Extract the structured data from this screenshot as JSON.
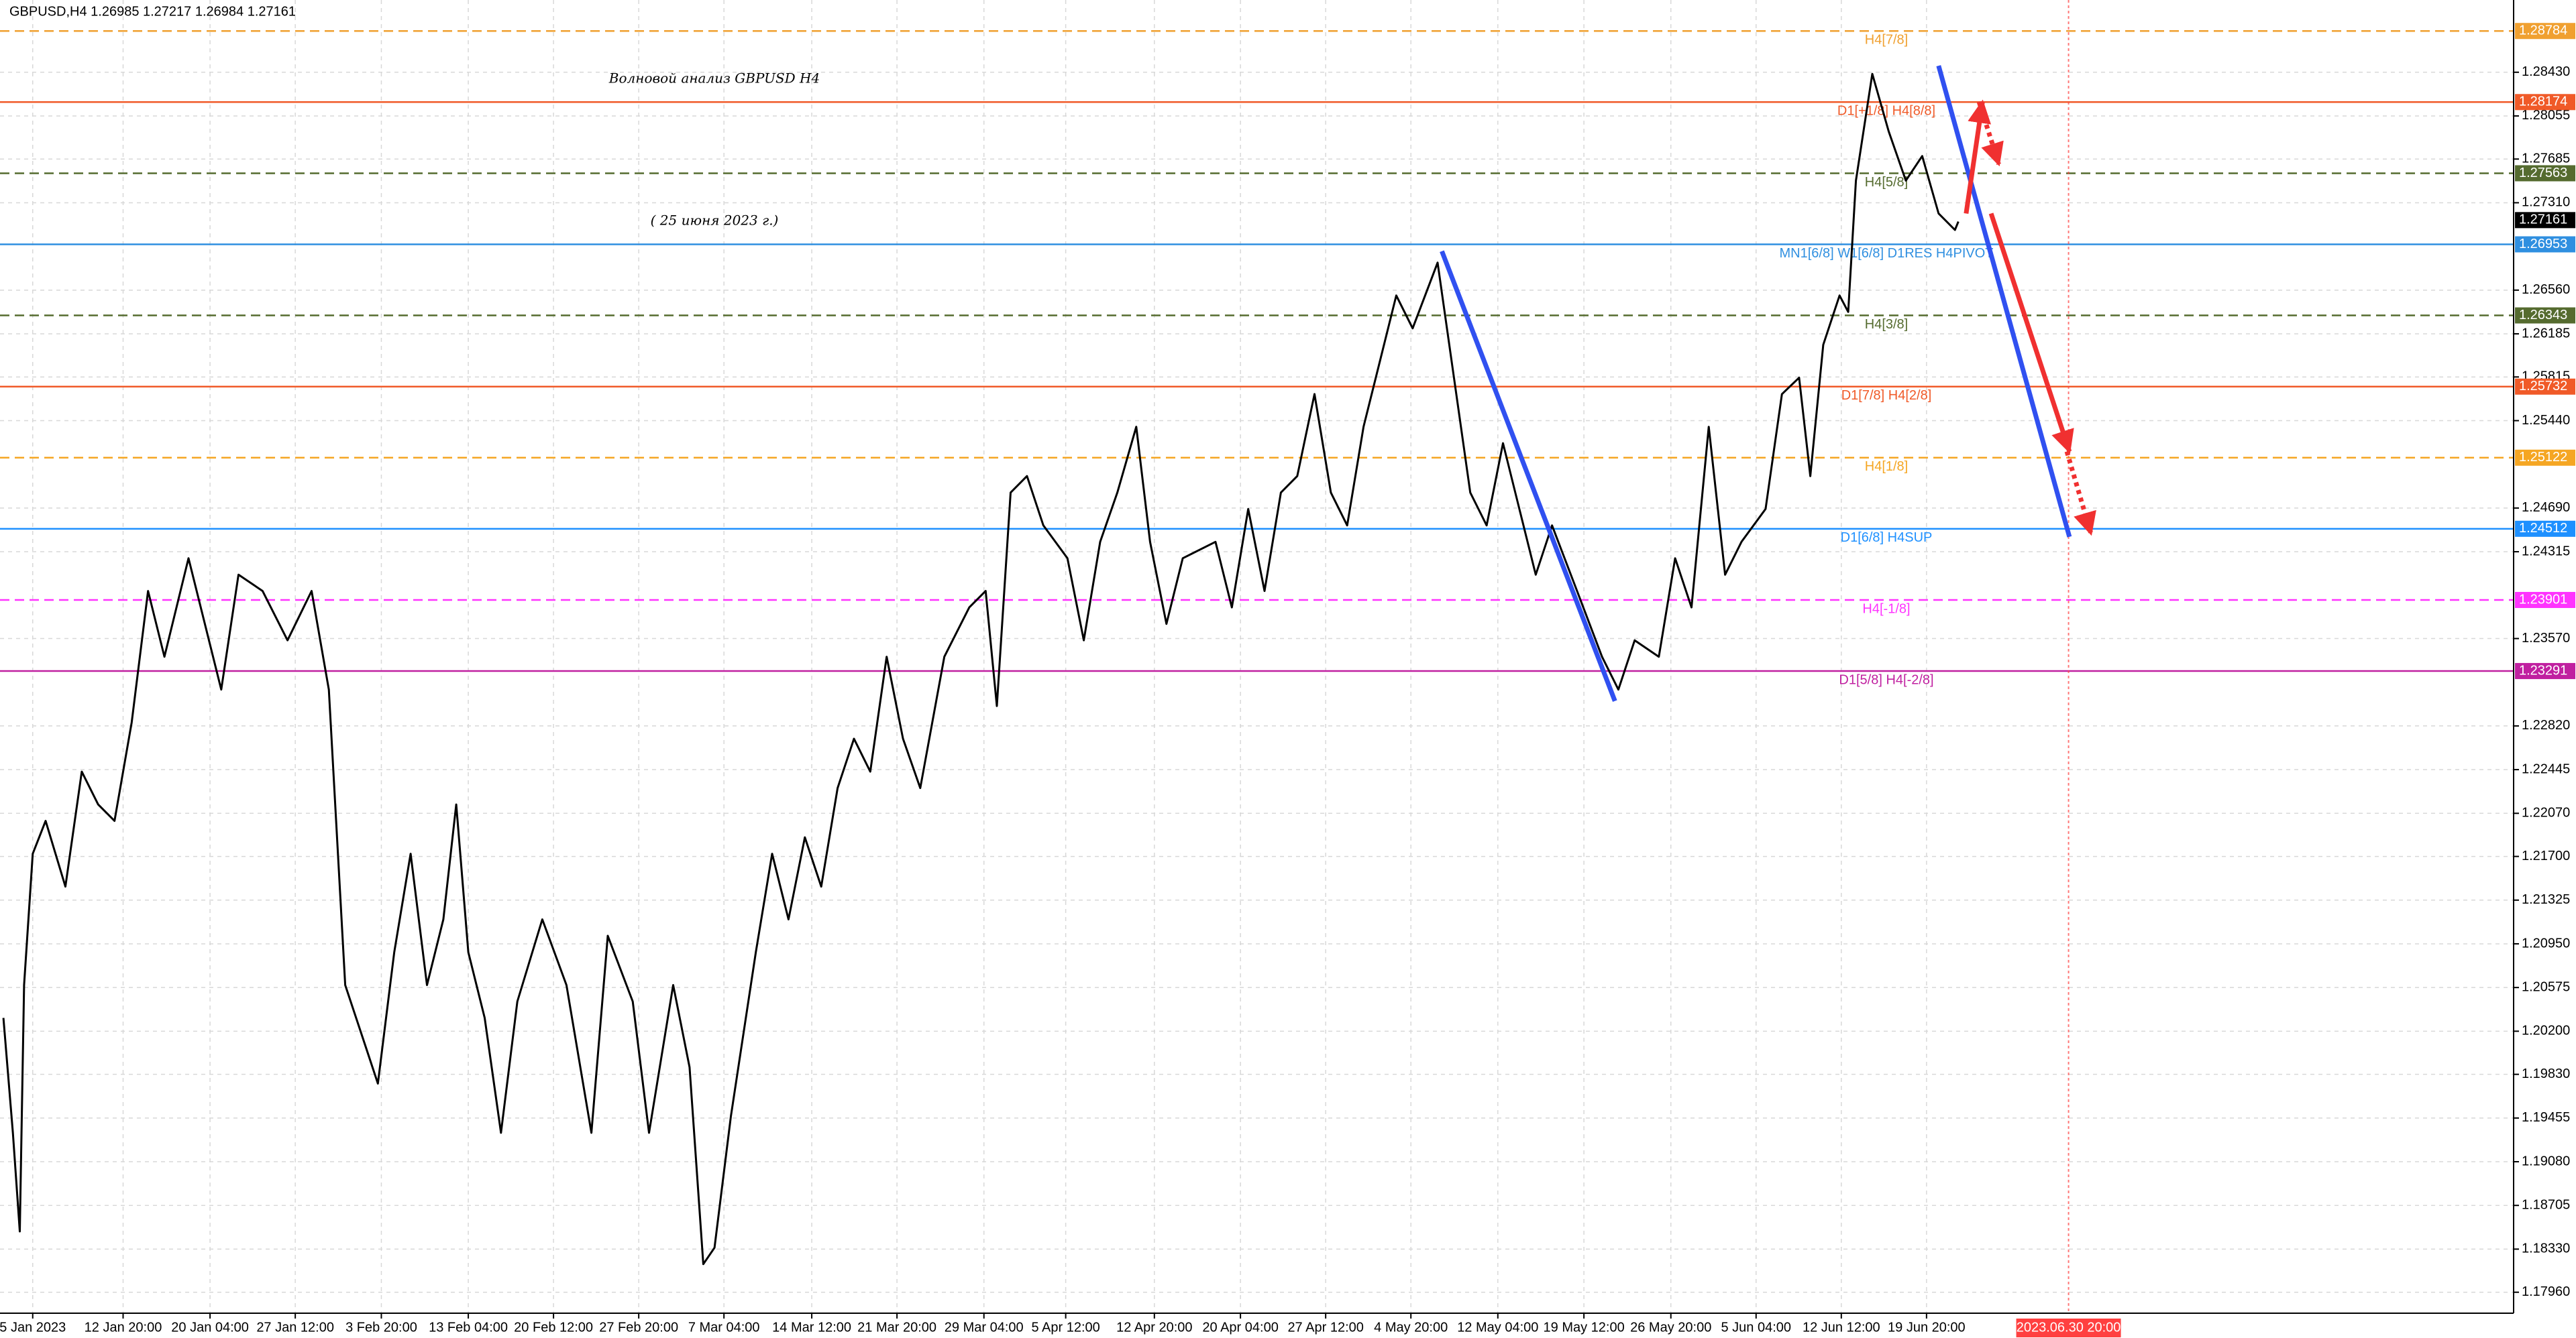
{
  "chart_data": {
    "type": "line",
    "header": "GBPUSD,H4  1.26985 1.27217 1.26984 1.27161",
    "title": "Волновой анализ GBPUSD H4",
    "subtitle": "( 25 июня 2023 г.)",
    "grid": true,
    "color": "#000000",
    "xlim": [
      -0.38,
      28.82
    ],
    "ylim": [
      1.1778,
      1.2905
    ],
    "xticks": [
      {
        "value": 0,
        "label": "5 Jan 2023"
      },
      {
        "value": 1.05,
        "label": "12 Jan 20:00"
      },
      {
        "value": 2.06,
        "label": "20 Jan 04:00"
      },
      {
        "value": 3.05,
        "label": "27 Jan 12:00"
      },
      {
        "value": 4.05,
        "label": "3 Feb 20:00"
      },
      {
        "value": 5.06,
        "label": "13 Feb 04:00"
      },
      {
        "value": 6.05,
        "label": "20 Feb 12:00"
      },
      {
        "value": 7.04,
        "label": "27 Feb 20:00"
      },
      {
        "value": 8.03,
        "label": "7 Mar 04:00"
      },
      {
        "value": 9.05,
        "label": "14 Mar 12:00"
      },
      {
        "value": 10.04,
        "label": "21 Mar 20:00"
      },
      {
        "value": 11.05,
        "label": "29 Mar 04:00"
      },
      {
        "value": 12.0,
        "label": "5 Apr 12:00"
      },
      {
        "value": 13.03,
        "label": "12 Apr 20:00"
      },
      {
        "value": 14.03,
        "label": "20 Apr 04:00"
      },
      {
        "value": 15.02,
        "label": "27 Apr 12:00"
      },
      {
        "value": 16.01,
        "label": "4 May 20:00"
      },
      {
        "value": 17.02,
        "label": "12 May 04:00"
      },
      {
        "value": 18.02,
        "label": "19 May 12:00"
      },
      {
        "value": 19.03,
        "label": "26 May 20:00"
      },
      {
        "value": 20.02,
        "label": "5 Jun 04:00"
      },
      {
        "value": 21.01,
        "label": "12 Jun 12:00"
      },
      {
        "value": 22.0,
        "label": "19 Jun 20:00"
      }
    ],
    "yticks": [
      {
        "value": 1.2843,
        "label": "1.28430"
      },
      {
        "value": 1.28055,
        "label": "1.28055"
      },
      {
        "value": 1.27685,
        "label": "1.27685"
      },
      {
        "value": 1.2731,
        "label": "1.27310"
      },
      {
        "value": 1.2656,
        "label": "1.26560"
      },
      {
        "value": 1.26185,
        "label": "1.26185"
      },
      {
        "value": 1.25815,
        "label": "1.25815"
      },
      {
        "value": 1.2544,
        "label": "1.25440"
      },
      {
        "value": 1.2469,
        "label": "1.24690"
      },
      {
        "value": 1.24315,
        "label": "1.24315"
      },
      {
        "value": 1.2357,
        "label": "1.23570"
      },
      {
        "value": 1.2282,
        "label": "1.22820"
      },
      {
        "value": 1.22445,
        "label": "1.22445"
      },
      {
        "value": 1.2207,
        "label": "1.22070"
      },
      {
        "value": 1.217,
        "label": "1.21700"
      },
      {
        "value": 1.21325,
        "label": "1.21325"
      },
      {
        "value": 1.2095,
        "label": "1.20950"
      },
      {
        "value": 1.20575,
        "label": "1.20575"
      },
      {
        "value": 1.202,
        "label": "1.20200"
      },
      {
        "value": 1.1983,
        "label": "1.19830"
      },
      {
        "value": 1.19455,
        "label": "1.19455"
      },
      {
        "value": 1.1908,
        "label": "1.19080"
      },
      {
        "value": 1.18705,
        "label": "1.18705"
      },
      {
        "value": 1.1833,
        "label": "1.18330"
      },
      {
        "value": 1.1796,
        "label": "1.17960"
      }
    ],
    "x": [
      -0.34,
      -0.23,
      -0.15,
      -0.1,
      0,
      0.15,
      0.38,
      0.57,
      0.76,
      0.95,
      1.15,
      1.34,
      1.53,
      1.81,
      2.0,
      2.19,
      2.39,
      2.67,
      2.96,
      3.24,
      3.44,
      3.63,
      3.82,
      4.01,
      4.2,
      4.39,
      4.58,
      4.77,
      4.92,
      5.06,
      5.25,
      5.44,
      5.63,
      5.92,
      6.2,
      6.49,
      6.68,
      6.97,
      7.16,
      7.44,
      7.63,
      7.79,
      7.92,
      8.11,
      8.4,
      8.59,
      8.78,
      8.97,
      9.16,
      9.35,
      9.54,
      9.73,
      9.92,
      10.11,
      10.31,
      10.59,
      10.88,
      11.07,
      11.2,
      11.36,
      11.55,
      11.74,
      12.02,
      12.21,
      12.4,
      12.6,
      12.82,
      12.98,
      13.17,
      13.36,
      13.74,
      13.93,
      14.12,
      14.31,
      14.5,
      14.69,
      14.89,
      15.08,
      15.27,
      15.46,
      15.65,
      15.84,
      16.03,
      16.32,
      16.51,
      16.7,
      16.89,
      17.08,
      17.27,
      17.46,
      17.65,
      17.94,
      18.23,
      18.42,
      18.61,
      18.89,
      19.08,
      19.27,
      19.47,
      19.66,
      19.85,
      20.13,
      20.32,
      20.52,
      20.65,
      20.8,
      20.99,
      21.09,
      21.18,
      21.37,
      21.56,
      21.76,
      21.95,
      22.14,
      22.33,
      22.37
    ],
    "values": [
      1.20314,
      1.19328,
      1.18482,
      1.20596,
      1.21723,
      1.22005,
      1.21441,
      1.22428,
      1.22146,
      1.22005,
      1.2285,
      1.23978,
      1.23414,
      1.24259,
      1.23696,
      1.23132,
      1.24118,
      1.23978,
      1.23555,
      1.23978,
      1.23132,
      1.20596,
      1.20173,
      1.19751,
      1.20878,
      1.21723,
      1.20596,
      1.2116,
      1.22146,
      1.20878,
      1.20314,
      1.19328,
      1.20455,
      1.2116,
      1.20596,
      1.19328,
      1.21019,
      1.20455,
      1.19328,
      1.20596,
      1.19892,
      1.18201,
      1.18342,
      1.19469,
      1.20878,
      1.21723,
      1.2116,
      1.21864,
      1.21441,
      1.22287,
      1.2271,
      1.22428,
      1.23414,
      1.2271,
      1.22287,
      1.23414,
      1.23837,
      1.23978,
      1.22991,
      1.24823,
      1.24964,
      1.24541,
      1.24259,
      1.23555,
      1.244,
      1.24823,
      1.25387,
      1.244,
      1.23696,
      1.24259,
      1.244,
      1.23837,
      1.24682,
      1.23978,
      1.24823,
      1.24964,
      1.25668,
      1.24823,
      1.24541,
      1.25387,
      1.2595,
      1.26514,
      1.26232,
      1.26796,
      1.25809,
      1.24823,
      1.24541,
      1.25246,
      1.24682,
      1.24118,
      1.24541,
      1.23978,
      1.23414,
      1.23132,
      1.23555,
      1.23414,
      1.24259,
      1.23837,
      1.25387,
      1.24118,
      1.244,
      1.24682,
      1.25668,
      1.25809,
      1.24964,
      1.26091,
      1.26514,
      1.26373,
      1.275,
      1.28416,
      1.27923,
      1.275,
      1.27711,
      1.27218,
      1.27077,
      1.27148
    ],
    "current_price": 1.27161,
    "levels": [
      {
        "value": 1.28784,
        "label": "H4[7/8]",
        "color": "#f0a030",
        "style": "dashed"
      },
      {
        "value": 1.28174,
        "label": "D1[+1/8] H4[8/8]",
        "color": "#f05a28",
        "style": "solid"
      },
      {
        "value": 1.27563,
        "label": "H4[5/8]",
        "color": "#556b2f",
        "style": "dashed"
      },
      {
        "value": 1.26953,
        "label": "MN1[6/8] W1[6/8] D1RES H4PIVOT",
        "color": "#2f8fe0",
        "style": "solid"
      },
      {
        "value": 1.26343,
        "label": "H4[3/8]",
        "color": "#556b2f",
        "style": "dashed"
      },
      {
        "value": 1.25732,
        "label": "D1[7/8] H4[2/8]",
        "color": "#f05a28",
        "style": "solid"
      },
      {
        "value": 1.25122,
        "label": "H4[1/8]",
        "color": "#f5a623",
        "style": "dashed"
      },
      {
        "value": 1.24512,
        "label": "D1[6/8] H4SUP",
        "color": "#1e90ff",
        "style": "solid"
      },
      {
        "value": 1.23901,
        "label": "H4[-1/8]",
        "color": "#ff33ff",
        "style": "dashed"
      },
      {
        "value": 1.23291,
        "label": "D1[5/8] H4[-2/8]",
        "color": "#c020a0",
        "style": "solid"
      }
    ],
    "time_marker": {
      "value": 23.65,
      "label": "2023.06.30 20:00",
      "color": "#ff4040"
    },
    "annotations": [
      {
        "color": "#3050f0",
        "style": "solid",
        "arrow": false,
        "points": [
          [
            16.37,
            1.26894
          ],
          [
            18.38,
            1.23034
          ]
        ]
      },
      {
        "color": "#3050f0",
        "style": "solid",
        "arrow": false,
        "points": [
          [
            22.14,
            1.28486
          ],
          [
            23.66,
            1.24443
          ]
        ]
      },
      {
        "color": "#f03030",
        "style": "solid",
        "arrow": true,
        "points": [
          [
            22.46,
            1.27218
          ],
          [
            22.65,
            1.28176
          ]
        ]
      },
      {
        "color": "#f03030",
        "style": "dotted",
        "arrow": true,
        "points": [
          [
            22.61,
            1.28176
          ],
          [
            22.84,
            1.27641
          ]
        ]
      },
      {
        "color": "#f03030",
        "style": "solid",
        "arrow": true,
        "points": [
          [
            22.75,
            1.27218
          ],
          [
            23.66,
            1.25175
          ]
        ]
      },
      {
        "color": "#f03030",
        "style": "dotted",
        "arrow": true,
        "points": [
          [
            23.63,
            1.25175
          ],
          [
            23.91,
            1.24471
          ]
        ]
      }
    ]
  }
}
